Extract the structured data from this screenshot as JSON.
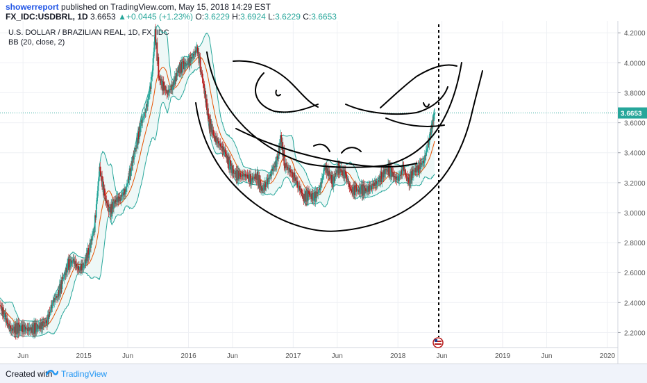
{
  "header": {
    "author": "showerreport",
    "published_text": "published on TradingView.com, May 15, 2018 14:29 EST",
    "symbol": "FX_IDC:USDBRL, 1D",
    "last": "3.6653",
    "change": "+0.0445 (+1.23%)",
    "o_label": "O:",
    "o_value": "3.6229",
    "h_label": "H:",
    "h_value": "3.6924",
    "l_label": "L:",
    "l_value": "3.6229",
    "c_label": "C:",
    "c_value": "3.6653"
  },
  "chart_data": {
    "type": "line",
    "title": "U.S. DOLLAR / BRAZILIAN REAL, 1D, FX_IDC",
    "indicator": "BB (20, close, 2)",
    "x_tick_labels": [
      "Jun",
      "2015",
      "Jun",
      "2016",
      "Jun",
      "2017",
      "Jun",
      "2018",
      "Jun",
      "2019",
      "Jun",
      "2020"
    ],
    "y_tick_labels": [
      "4.2000",
      "4.0000",
      "3.8000",
      "3.6000",
      "3.4000",
      "3.2000",
      "3.0000",
      "2.8000",
      "2.6000",
      "2.4000",
      "2.2000"
    ],
    "y_ticks": [
      4.2,
      4.0,
      3.8,
      3.6,
      3.4,
      3.2,
      3.0,
      2.8,
      2.6,
      2.4,
      2.2
    ],
    "ylim": [
      2.1,
      4.28
    ],
    "x_ticks_years": [
      2014.42,
      2015.0,
      2015.42,
      2016.0,
      2016.42,
      2017.0,
      2017.42,
      2018.0,
      2018.42,
      2019.0,
      2019.42,
      2020.0
    ],
    "xlim": [
      2014.2,
      2020.1
    ],
    "last_price": 3.6653,
    "last_price_label": "3.6653",
    "series": [
      {
        "x": [
          2014.2,
          2014.25,
          2014.3,
          2014.4,
          2014.5,
          2014.6,
          2014.65,
          2014.7,
          2014.75,
          2014.8,
          2014.85,
          2014.9,
          2014.95,
          2015.0,
          2015.05,
          2015.1,
          2015.12,
          2015.15,
          2015.2,
          2015.25,
          2015.3,
          2015.35,
          2015.4,
          2015.45,
          2015.5,
          2015.55,
          2015.6,
          2015.65,
          2015.68,
          2015.72,
          2015.75,
          2015.8,
          2015.85,
          2015.9,
          2015.95,
          2016.0,
          2016.05,
          2016.08,
          2016.12,
          2016.2,
          2016.25,
          2016.3,
          2016.35,
          2016.4,
          2016.45,
          2016.5,
          2016.55,
          2016.6,
          2016.65,
          2016.7,
          2016.75,
          2016.8,
          2016.85,
          2016.88,
          2016.92,
          2017.0,
          2017.05,
          2017.1,
          2017.15,
          2017.2,
          2017.25,
          2017.3,
          2017.35,
          2017.38,
          2017.42,
          2017.5,
          2017.55,
          2017.6,
          2017.65,
          2017.7,
          2017.75,
          2017.8,
          2017.85,
          2017.9,
          2017.95,
          2018.0,
          2018.05,
          2018.1,
          2018.15,
          2018.2,
          2018.25,
          2018.3,
          2018.35
        ],
        "values": [
          2.38,
          2.3,
          2.22,
          2.23,
          2.22,
          2.25,
          2.28,
          2.4,
          2.45,
          2.55,
          2.65,
          2.68,
          2.62,
          2.65,
          2.75,
          2.9,
          3.05,
          3.3,
          3.1,
          3.0,
          3.08,
          3.1,
          3.15,
          3.3,
          3.45,
          3.6,
          3.7,
          3.9,
          4.2,
          3.9,
          3.85,
          3.8,
          3.85,
          3.95,
          3.98,
          4.0,
          4.05,
          4.1,
          3.95,
          3.6,
          3.5,
          3.45,
          3.4,
          3.3,
          3.25,
          3.25,
          3.25,
          3.22,
          3.25,
          3.15,
          3.2,
          3.28,
          3.35,
          3.5,
          3.32,
          3.25,
          3.18,
          3.1,
          3.12,
          3.1,
          3.15,
          3.3,
          3.25,
          3.2,
          3.3,
          3.25,
          3.15,
          3.15,
          3.15,
          3.15,
          3.18,
          3.2,
          3.25,
          3.3,
          3.25,
          3.22,
          3.3,
          3.2,
          3.28,
          3.3,
          3.35,
          3.5,
          3.6653
        ]
      }
    ]
  },
  "footer": {
    "created_with": "Created with",
    "brand": "TradingView"
  },
  "colors": {
    "candle_up": "#26a69a",
    "candle_down": "#b71c1c",
    "bb_band": "#26a69a",
    "bb_basis": "#e65100",
    "drawing": "#000000"
  }
}
